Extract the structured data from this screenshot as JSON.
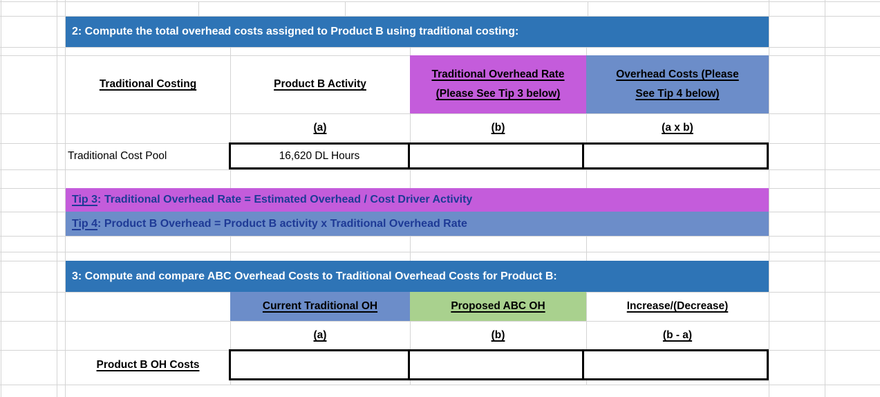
{
  "colors": {
    "header_blue": "#2e74b6",
    "magenta": "#c45cdb",
    "periwinkle": "#6c8dc9",
    "green": "#a9d18e",
    "tip_text_blue": "#1e3a96",
    "gridline_gray": "#d4d4d4"
  },
  "section2": {
    "title": "2: Compute the total overhead costs assigned to Product B using traditional costing:",
    "table": {
      "col_headers": [
        "Traditional Costing",
        "Product B Activity",
        "Traditional Overhead Rate\n(Please See Tip 3 below)",
        "Overhead Costs (Please\nSee Tip 4 below)"
      ],
      "formula_row": [
        "(a)",
        "(b)",
        "(a x b)"
      ],
      "row_label": "Traditional Cost Pool",
      "activity_value": "16,620 DL Hours",
      "rate_value": "",
      "overhead_value": ""
    }
  },
  "tips": [
    {
      "label": "Tip 3",
      "text": ": Traditional Overhead Rate = Estimated Overhead / Cost Driver Activity"
    },
    {
      "label": "Tip 4",
      "text": ": Product B Overhead = Product B activity x Traditional Overhead Rate"
    }
  ],
  "section3": {
    "title": "3: Compute and compare ABC Overhead Costs to Traditional Overhead Costs for Product B:",
    "table": {
      "col_headers": [
        "Current Traditional OH",
        "Proposed ABC OH",
        "Increase/(Decrease)"
      ],
      "formula_row": [
        "(a)",
        "(b)",
        "(b - a)"
      ],
      "row_label": "Product B OH Costs",
      "current_value": "",
      "abc_value": "",
      "increase_value": ""
    }
  }
}
